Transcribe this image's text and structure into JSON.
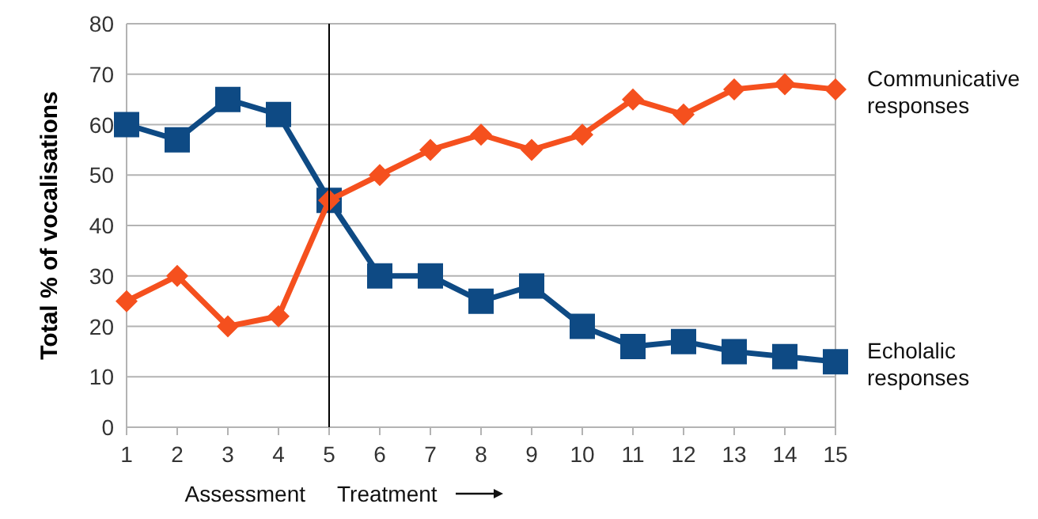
{
  "chart_data": {
    "type": "line",
    "ylabel": "Total % of vocalisations",
    "x": [
      1,
      2,
      3,
      4,
      5,
      6,
      7,
      8,
      9,
      10,
      11,
      12,
      13,
      14,
      15
    ],
    "xlim": [
      1,
      15
    ],
    "xticks": [
      1,
      2,
      3,
      4,
      5,
      6,
      7,
      8,
      9,
      10,
      11,
      12,
      13,
      14,
      15
    ],
    "ylim": [
      0,
      80
    ],
    "yticks": [
      0,
      10,
      20,
      30,
      40,
      50,
      60,
      70,
      80
    ],
    "grid": "y",
    "series": [
      {
        "name": "Echolalic responses",
        "color": "#0e4a84",
        "marker": "square",
        "values": [
          60,
          57,
          65,
          62,
          45,
          30,
          30,
          25,
          28,
          20,
          16,
          17,
          15,
          14,
          13
        ]
      },
      {
        "name": "Communicative responses",
        "color": "#f5501e",
        "marker": "diamond",
        "values": [
          25,
          30,
          20,
          22,
          45,
          50,
          55,
          58,
          55,
          58,
          65,
          62,
          67,
          68,
          67
        ]
      }
    ],
    "ref_lines": [
      {
        "axis": "x",
        "value": 5,
        "color": "#000000"
      }
    ],
    "annotations": [
      "Assessment",
      "Treatment"
    ]
  }
}
